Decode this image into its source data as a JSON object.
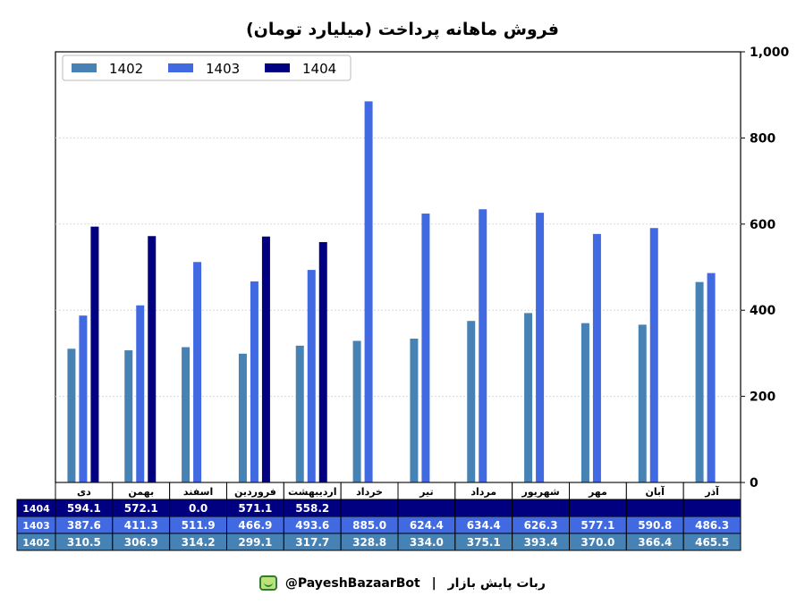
{
  "title": "فروش ماهانه پرداخت (میلیارد تومان)",
  "footer": {
    "handle": "@PayeshBazaarBot",
    "separator": "|",
    "name": "ربات پایش بازار"
  },
  "colors": {
    "1402": "#4682b4",
    "1403": "#4169e1",
    "1404": "#000080"
  },
  "chart_data": {
    "type": "bar",
    "title": "فروش ماهانه پرداخت (میلیارد تومان)",
    "categories": [
      "دی",
      "بهمن",
      "اسفند",
      "فروردین",
      "اردیبهشت",
      "خرداد",
      "تیر",
      "مرداد",
      "شهریور",
      "مهر",
      "آبان",
      "آذر"
    ],
    "series": [
      {
        "name": "1402",
        "values": [
          310.5,
          306.9,
          314.2,
          299.1,
          317.7,
          328.8,
          334.0,
          375.1,
          393.4,
          370.0,
          366.4,
          465.5
        ]
      },
      {
        "name": "1403",
        "values": [
          387.6,
          411.3,
          511.9,
          466.9,
          493.6,
          885.0,
          624.4,
          634.4,
          626.3,
          577.1,
          590.8,
          486.3
        ]
      },
      {
        "name": "1404",
        "values": [
          594.1,
          572.1,
          0.0,
          571.1,
          558.2,
          null,
          null,
          null,
          null,
          null,
          null,
          null
        ]
      }
    ],
    "ylim": [
      0,
      1000
    ],
    "yticks": [
      "0",
      "200",
      "400",
      "600",
      "800",
      "1,000"
    ],
    "y_axis_side": "right",
    "grid": true,
    "legend": "top-left",
    "table": {
      "rows": [
        {
          "label": "1404",
          "cells": [
            "594.1",
            "572.1",
            "0.0",
            "571.1",
            "558.2",
            "",
            "",
            "",
            "",
            "",
            "",
            ""
          ]
        },
        {
          "label": "1403",
          "cells": [
            "387.6",
            "411.3",
            "511.9",
            "466.9",
            "493.6",
            "885.0",
            "624.4",
            "634.4",
            "626.3",
            "577.1",
            "590.8",
            "486.3"
          ]
        },
        {
          "label": "1402",
          "cells": [
            "310.5",
            "306.9",
            "314.2",
            "299.1",
            "317.7",
            "328.8",
            "334.0",
            "375.1",
            "393.4",
            "370.0",
            "366.4",
            "465.5"
          ]
        }
      ]
    }
  }
}
